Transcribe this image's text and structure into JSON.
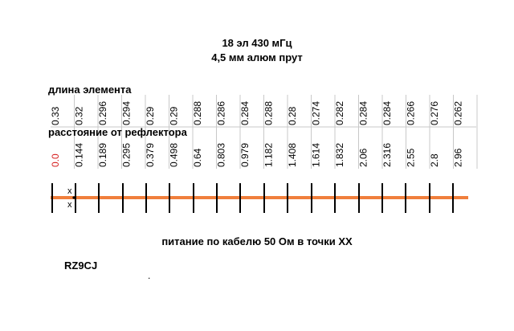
{
  "title_line1": "18 эл 430 мГц",
  "title_line2": "4,5 мм алюм прут",
  "length_label": "длина элемента",
  "distance_label": "расстояние от рефлектора",
  "lengths": [
    "0.33",
    "0.32",
    "0.296",
    "0.294",
    "0.29",
    "0.29",
    "0.288",
    "0.286",
    "0.284",
    "0.288",
    "0.28",
    "0.274",
    "0.282",
    "0.284",
    "0.284",
    "0.266",
    "0.276",
    "0.262"
  ],
  "distances": [
    "0.0",
    "0.144",
    "0.189",
    "0.295",
    "0.379",
    "0.498",
    "0.64",
    "0.803",
    "0.979",
    "1.182",
    "1.408",
    "1.614",
    "1.832",
    "2.06",
    "2.316",
    "2.55",
    "2.8",
    "2.96"
  ],
  "feed_marker_top": "x",
  "feed_marker_bottom": "x",
  "colors": {
    "boom": "#f07f3c",
    "reflector_distance": "#d62020",
    "grid": "#c8c8c8"
  },
  "footer_text": "питание по кабелю 50 Ом в точки ХХ",
  "author": "RZ9CJ",
  "dot": "."
}
